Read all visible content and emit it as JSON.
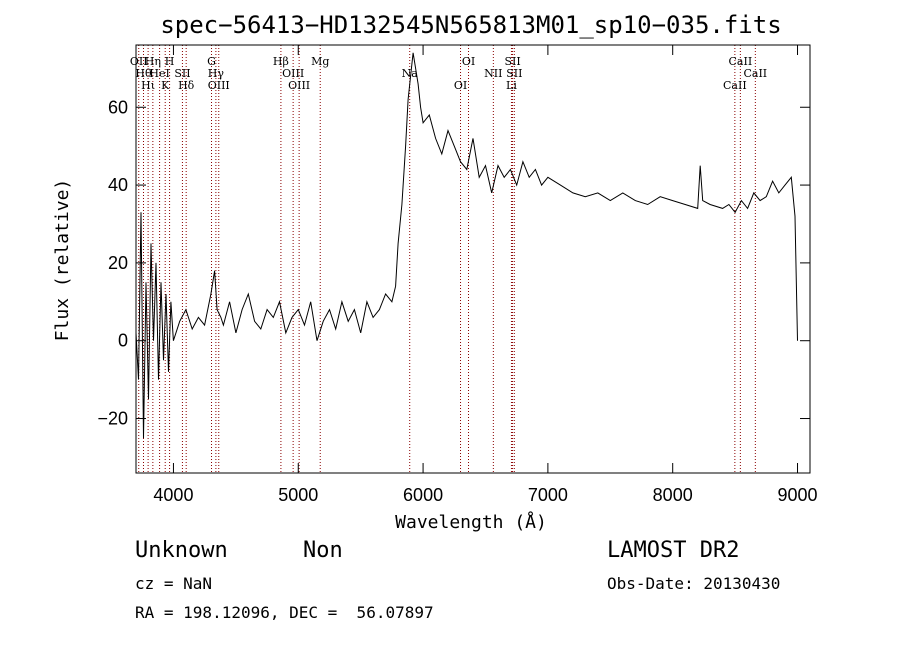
{
  "chart_data": {
    "type": "line",
    "title": "spec−56413−HD132545N565813M01_sp10−035.fits",
    "xlabel": "Wavelength (Å)",
    "ylabel": "Flux (relative)",
    "xlim": [
      3700,
      9100
    ],
    "ylim": [
      -34,
      76
    ],
    "xticks": [
      4000,
      5000,
      6000,
      7000,
      8000,
      9000
    ],
    "yticks": [
      -20,
      0,
      20,
      40,
      60
    ],
    "grid": false,
    "series": [
      {
        "x": [
          3700,
          3720,
          3740,
          3760,
          3780,
          3800,
          3820,
          3840,
          3860,
          3880,
          3900,
          3920,
          3940,
          3960,
          3980,
          4000,
          4050,
          4100,
          4150,
          4200,
          4250,
          4300,
          4330,
          4350,
          4380,
          4400,
          4450,
          4500,
          4550,
          4600,
          4650,
          4700,
          4750,
          4800,
          4850,
          4900,
          4950,
          5000,
          5050,
          5100,
          5150,
          5200,
          5250,
          5300,
          5350,
          5400,
          5450,
          5500,
          5550,
          5600,
          5650,
          5700,
          5750,
          5780,
          5800,
          5830,
          5860,
          5880,
          5900,
          5920,
          5940,
          5960,
          5980,
          6000,
          6050,
          6100,
          6150,
          6200,
          6250,
          6300,
          6350,
          6400,
          6450,
          6500,
          6550,
          6600,
          6650,
          6700,
          6750,
          6800,
          6850,
          6900,
          6950,
          7000,
          7100,
          7200,
          7300,
          7400,
          7500,
          7600,
          7700,
          7800,
          7900,
          8000,
          8100,
          8200,
          8220,
          8240,
          8300,
          8400,
          8450,
          8500,
          8550,
          8600,
          8650,
          8700,
          8750,
          8800,
          8850,
          8900,
          8950,
          8980,
          9000
        ],
        "values": [
          2,
          -10,
          33,
          -25,
          15,
          -15,
          25,
          0,
          20,
          -10,
          15,
          -5,
          12,
          -8,
          10,
          0,
          5,
          8,
          3,
          6,
          4,
          12,
          18,
          8,
          6,
          4,
          10,
          2,
          8,
          12,
          5,
          3,
          8,
          6,
          10,
          2,
          6,
          8,
          4,
          10,
          0,
          5,
          8,
          3,
          10,
          5,
          8,
          2,
          10,
          6,
          8,
          12,
          10,
          14,
          25,
          35,
          50,
          62,
          68,
          74,
          70,
          66,
          60,
          56,
          58,
          52,
          48,
          54,
          50,
          46,
          44,
          52,
          42,
          45,
          38,
          45,
          42,
          44,
          40,
          46,
          42,
          44,
          40,
          42,
          40,
          38,
          37,
          38,
          36,
          38,
          36,
          35,
          37,
          36,
          35,
          34,
          45,
          36,
          35,
          34,
          35,
          33,
          36,
          34,
          38,
          36,
          37,
          41,
          38,
          40,
          42,
          32,
          0
        ]
      }
    ],
    "lines": [
      {
        "x": 3722,
        "label": "OII"
      },
      {
        "x": 3760,
        "label": "Hθ"
      },
      {
        "x": 3797,
        "label": "Hι"
      },
      {
        "x": 3835,
        "label": "Hη"
      },
      {
        "x": 3889,
        "label": "HeI"
      },
      {
        "x": 3934,
        "label": "K"
      },
      {
        "x": 3969,
        "label": "H"
      },
      {
        "x": 4072,
        "label": "SII"
      },
      {
        "x": 4102,
        "label": "Hδ"
      },
      {
        "x": 4305,
        "label": "G"
      },
      {
        "x": 4340,
        "label": "Hγ"
      },
      {
        "x": 4363,
        "label": "OIII"
      },
      {
        "x": 4861,
        "label": "Hβ"
      },
      {
        "x": 4959,
        "label": "OIII"
      },
      {
        "x": 5007,
        "label": "OIII"
      },
      {
        "x": 5176,
        "label": "Mg"
      },
      {
        "x": 5893,
        "label": "Na"
      },
      {
        "x": 6300,
        "label": "OI"
      },
      {
        "x": 6364,
        "label": "OI"
      },
      {
        "x": 6563,
        "label": "NII"
      },
      {
        "x": 6708,
        "label": "Li"
      },
      {
        "x": 6717,
        "label": "SII"
      },
      {
        "x": 6731,
        "label": "SII"
      },
      {
        "x": 8498,
        "label": "CaII"
      },
      {
        "x": 8542,
        "label": "CaII"
      },
      {
        "x": 8662,
        "label": "CaII"
      }
    ]
  },
  "footer": {
    "object_class": "Unknown",
    "subclass": "Non",
    "survey": "LAMOST DR2",
    "cz": "cz = NaN",
    "obs_date": "Obs-Date: 20130430",
    "coords": "RA = 198.12096, DEC =  56.07897"
  },
  "colors": {
    "line_markers": "#8b0000",
    "spectrum": "#000000"
  }
}
